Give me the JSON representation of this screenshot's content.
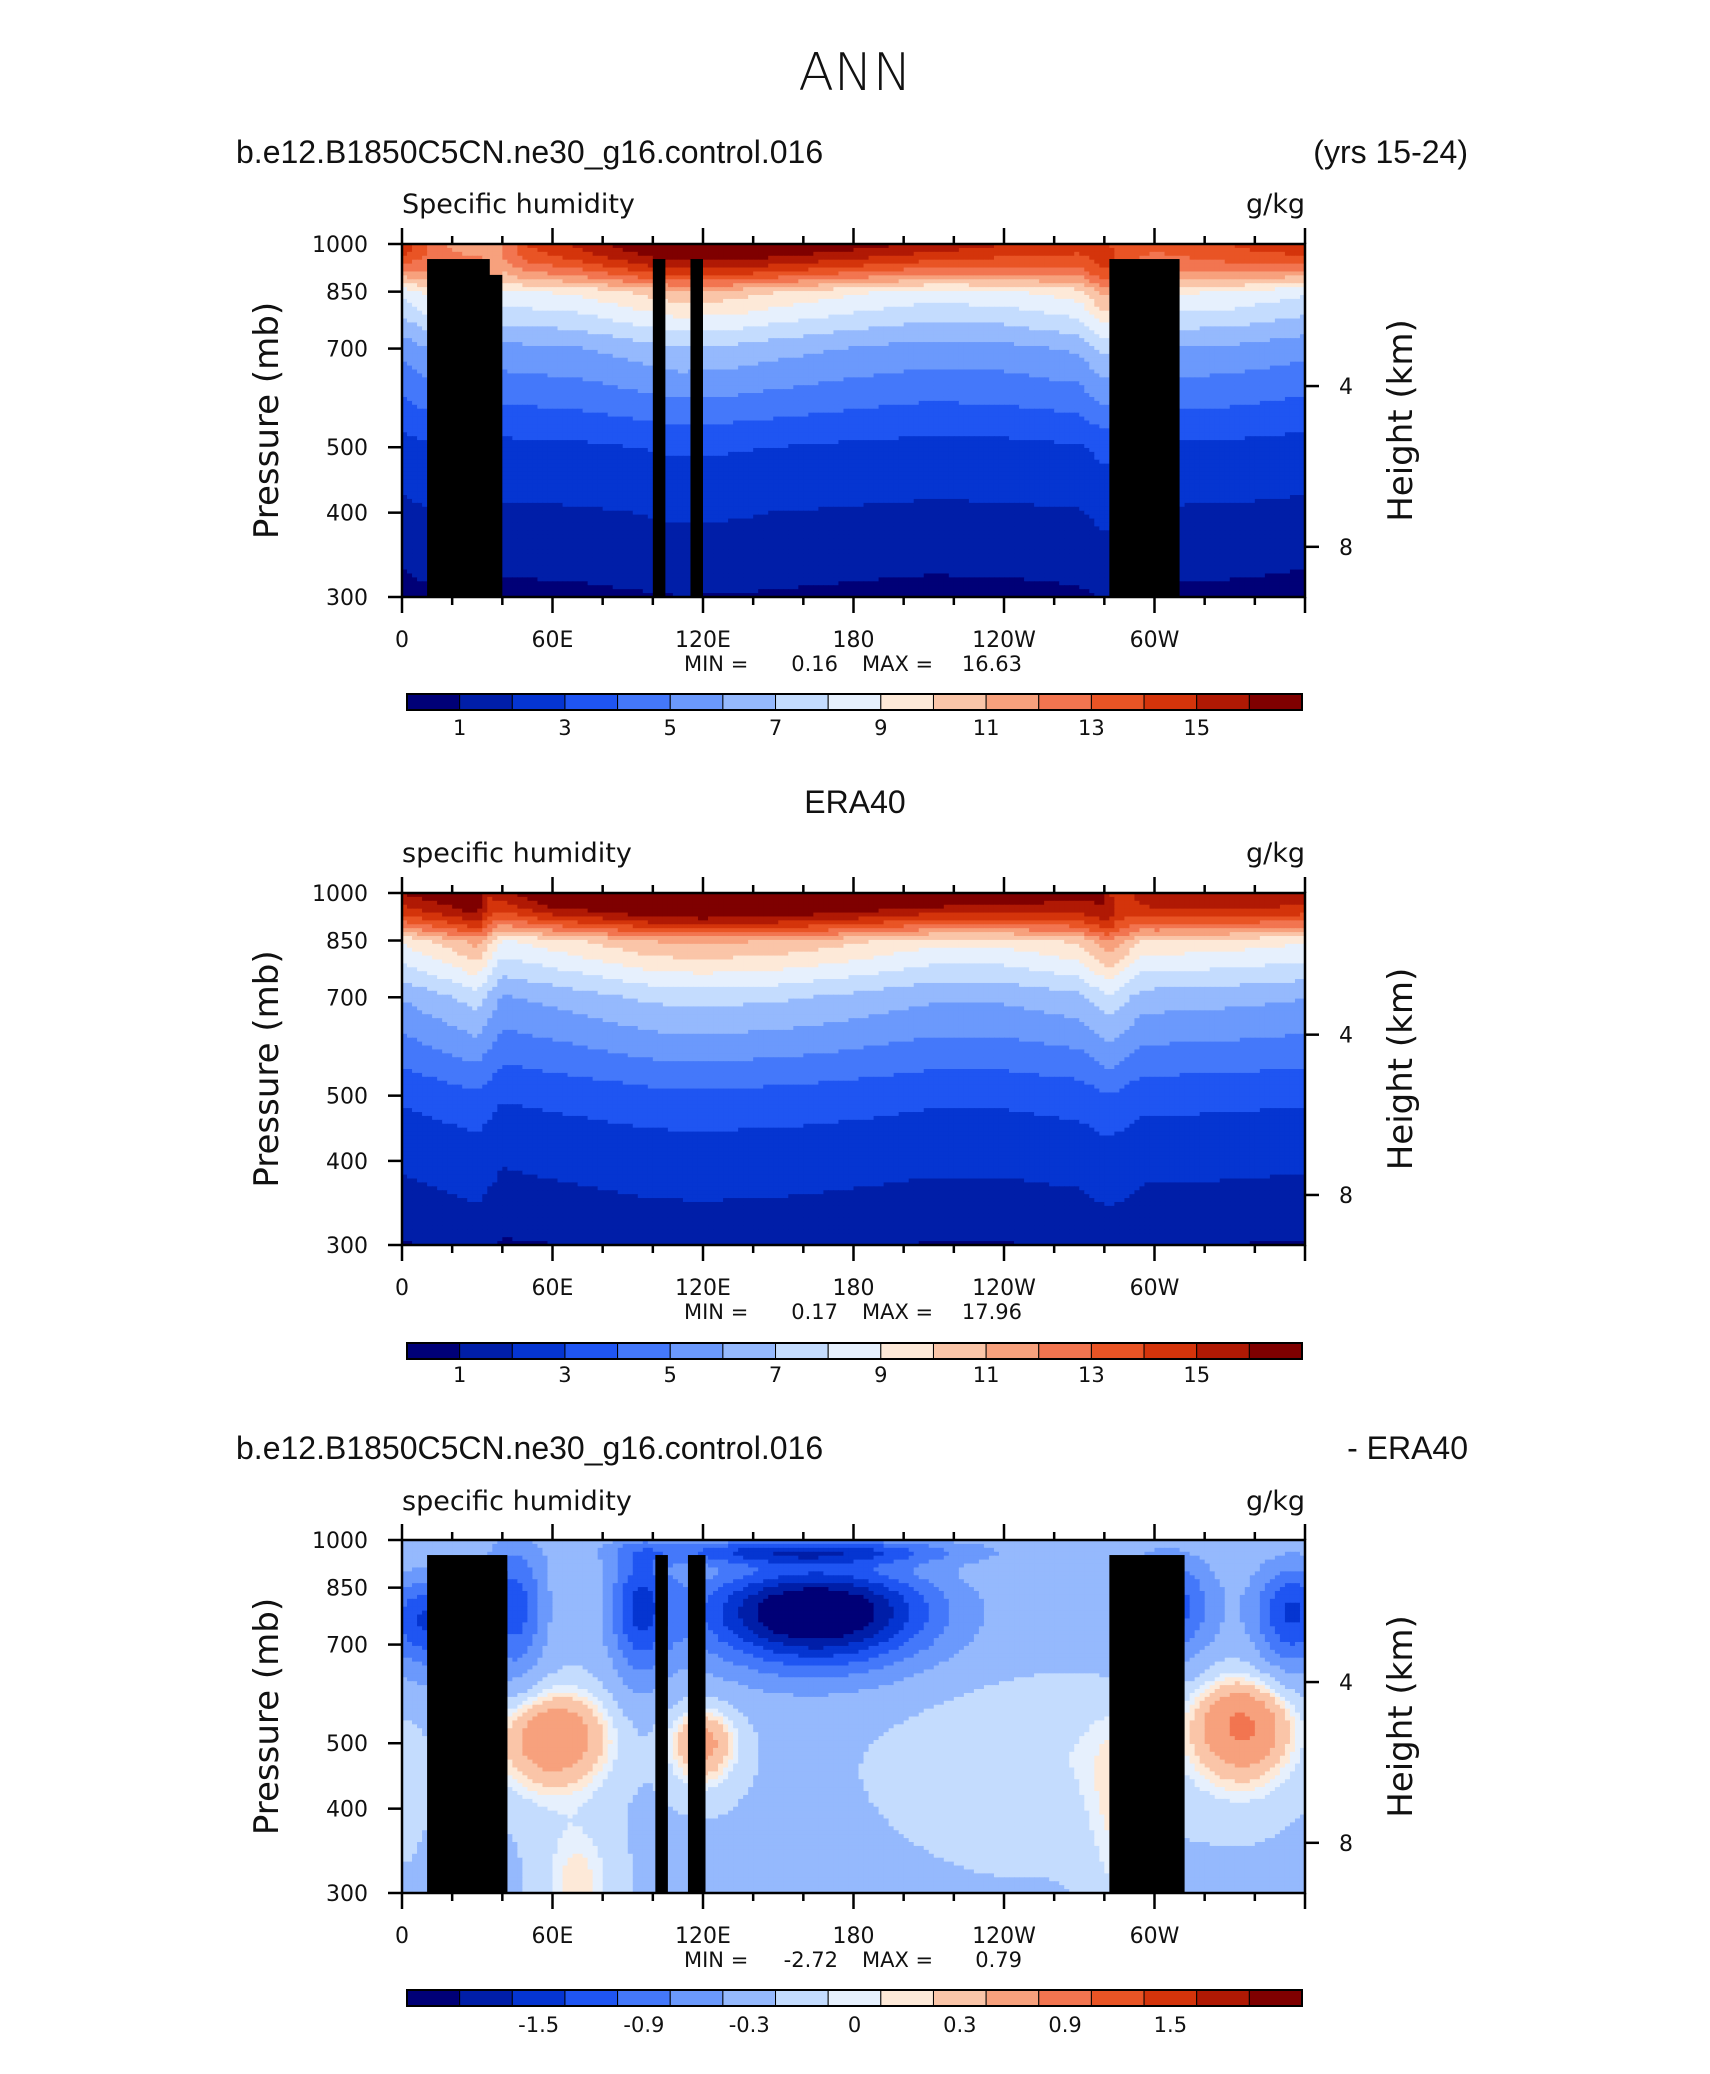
{
  "page_title": "ANN",
  "scale_colors": [
    "#000077",
    "#001ea8",
    "#0535d1",
    "#1f55f2",
    "#4478fa",
    "#6b99fc",
    "#95b9fd",
    "#c4dcfe",
    "#e6f0fd",
    "#fde9d8",
    "#fac5a8",
    "#f7a17d",
    "#f27550",
    "#e95425",
    "#d4340b",
    "#b01904",
    "#7f0000"
  ],
  "diff_colors": [
    "#000077",
    "#001ea8",
    "#0535d1",
    "#1f55f2",
    "#4478fa",
    "#6b99fc",
    "#95b9fd",
    "#c4dcfe",
    "#e6f0fd",
    "#fde9d8",
    "#fac5a8",
    "#f7a17d",
    "#f27550",
    "#e95425",
    "#d4340b",
    "#b01904",
    "#7f0000"
  ],
  "chart_data": [
    {
      "type": "heatmap",
      "id": "model",
      "header_left": "b.e12.B1850C5CN.ne30_g16.control.016",
      "header_right": "(yrs 15-24)",
      "title": "Specific humidity",
      "units": "g/kg",
      "ylabel": "Pressure (mb)",
      "ylabel_right": "Height (km)",
      "y_ticks": [
        "300",
        "400",
        "500",
        "700",
        "850",
        "1000"
      ],
      "y_right_ticks": [
        "8",
        "4"
      ],
      "x_ticks": [
        "0",
        "60E",
        "120E",
        "180",
        "120W",
        "60W"
      ],
      "ylim": [
        1000,
        300
      ],
      "xlim": [
        0,
        360
      ],
      "min_label": "MIN =",
      "min_value": "0.16",
      "max_label": "MAX =",
      "max_value": "16.63",
      "colorbar_labels": [
        "1",
        "3",
        "5",
        "7",
        "9",
        "11",
        "13",
        "15"
      ],
      "levels": [
        0.5,
        1,
        2,
        3,
        4,
        5,
        6,
        7,
        8,
        9,
        10,
        11,
        12,
        13,
        14,
        15
      ],
      "profile_pressures": [
        1000,
        850,
        700,
        500,
        400,
        300
      ],
      "profile_values": [
        15.0,
        10.0,
        6.0,
        2.2,
        1.1,
        0.5
      ],
      "profile_scale_by_longitude": [
        [
          0,
          0.72
        ],
        [
          20,
          0.95
        ],
        [
          30,
          1.05
        ],
        [
          40,
          0.78
        ],
        [
          70,
          0.82
        ],
        [
          100,
          0.94
        ],
        [
          110,
          0.98
        ],
        [
          130,
          0.96
        ],
        [
          150,
          0.9
        ],
        [
          180,
          0.82
        ],
        [
          210,
          0.76
        ],
        [
          240,
          0.78
        ],
        [
          270,
          0.86
        ],
        [
          280,
          1.05
        ],
        [
          290,
          0.85
        ],
        [
          300,
          0.82
        ],
        [
          330,
          0.8
        ],
        [
          360,
          0.72
        ]
      ],
      "surface_values": [
        [
          0,
          14
        ],
        [
          10,
          12
        ],
        [
          25,
          10
        ],
        [
          35,
          10
        ],
        [
          50,
          13
        ],
        [
          100,
          16
        ],
        [
          130,
          16.5
        ],
        [
          180,
          15.5
        ],
        [
          240,
          14
        ],
        [
          280,
          13
        ],
        [
          300,
          12
        ],
        [
          330,
          13
        ],
        [
          360,
          14
        ]
      ],
      "topography": [
        [
          10,
          35,
          950
        ],
        [
          28,
          40,
          900
        ],
        [
          100,
          105,
          950
        ],
        [
          115,
          120,
          950
        ],
        [
          282,
          310,
          950
        ]
      ]
    },
    {
      "type": "heatmap",
      "id": "obs",
      "header_center": "ERA40",
      "title": "specific humidity",
      "units": "g/kg",
      "ylabel": "Pressure (mb)",
      "ylabel_right": "Height (km)",
      "y_ticks": [
        "300",
        "400",
        "500",
        "700",
        "850",
        "1000"
      ],
      "y_right_ticks": [
        "8",
        "4"
      ],
      "x_ticks": [
        "0",
        "60E",
        "120E",
        "180",
        "120W",
        "60W"
      ],
      "ylim": [
        1000,
        300
      ],
      "xlim": [
        0,
        360
      ],
      "min_label": "MIN =",
      "min_value": "0.17",
      "max_label": "MAX =",
      "max_value": "17.96",
      "colorbar_labels": [
        "1",
        "3",
        "5",
        "7",
        "9",
        "11",
        "13",
        "15"
      ],
      "levels": [
        0.5,
        1,
        2,
        3,
        4,
        5,
        6,
        7,
        8,
        9,
        10,
        11,
        12,
        13,
        14,
        15
      ],
      "profile_pressures": [
        1000,
        850,
        700,
        500,
        400,
        300
      ],
      "profile_values": [
        16.5,
        10.5,
        6.5,
        2.8,
        1.4,
        0.6
      ],
      "profile_scale_by_longitude": [
        [
          0,
          0.78
        ],
        [
          20,
          0.92
        ],
        [
          30,
          1.0
        ],
        [
          40,
          0.75
        ],
        [
          70,
          0.85
        ],
        [
          100,
          0.96
        ],
        [
          120,
          0.98
        ],
        [
          150,
          0.95
        ],
        [
          180,
          0.88
        ],
        [
          210,
          0.8
        ],
        [
          240,
          0.8
        ],
        [
          270,
          0.88
        ],
        [
          282,
          1.05
        ],
        [
          295,
          0.85
        ],
        [
          330,
          0.82
        ],
        [
          360,
          0.78
        ]
      ],
      "surface_values": [
        [
          0,
          15
        ],
        [
          30,
          16
        ],
        [
          35,
          14
        ],
        [
          60,
          16.5
        ],
        [
          120,
          17.5
        ],
        [
          180,
          17
        ],
        [
          240,
          16
        ],
        [
          280,
          15
        ],
        [
          285,
          13
        ],
        [
          300,
          15
        ],
        [
          360,
          15
        ]
      ],
      "topography": []
    },
    {
      "type": "heatmap",
      "id": "diff",
      "header_left": "b.e12.B1850C5CN.ne30_g16.control.016",
      "header_right": "- ERA40",
      "title": "specific humidity",
      "units": "g/kg",
      "ylabel": "Pressure (mb)",
      "ylabel_right": "Height (km)",
      "y_ticks": [
        "300",
        "400",
        "500",
        "700",
        "850",
        "1000"
      ],
      "y_right_ticks": [
        "8",
        "4"
      ],
      "x_ticks": [
        "0",
        "60E",
        "120E",
        "180",
        "120W",
        "60W"
      ],
      "ylim": [
        1000,
        300
      ],
      "xlim": [
        0,
        360
      ],
      "min_label": "MIN =",
      "min_value": "-2.72",
      "max_label": "MAX =",
      "max_value": "0.79",
      "colorbar_labels": [
        "-1.5",
        "-0.9",
        "-0.3",
        "0",
        "0.3",
        "0.9",
        "1.5"
      ],
      "levels": [
        -2.1,
        -1.8,
        -1.5,
        -1.2,
        -0.9,
        -0.6,
        -0.3,
        -0.1,
        0,
        0.1,
        0.3,
        0.6,
        0.9,
        1.2,
        1.5,
        1.8
      ],
      "base_value": -0.35,
      "anomalies": [
        {
          "lon": 165,
          "p": 780,
          "dlon": 45,
          "dp": 130,
          "amp": -2.3
        },
        {
          "lon": 160,
          "p": 960,
          "dlon": 60,
          "dp": 40,
          "amp": -1.2
        },
        {
          "lon": 10,
          "p": 760,
          "dlon": 18,
          "dp": 120,
          "amp": -1.2
        },
        {
          "lon": 45,
          "p": 800,
          "dlon": 12,
          "dp": 180,
          "amp": -1.0
        },
        {
          "lon": 95,
          "p": 800,
          "dlon": 12,
          "dp": 180,
          "amp": -1.1
        },
        {
          "lon": 305,
          "p": 800,
          "dlon": 18,
          "dp": 140,
          "amp": -1.1
        },
        {
          "lon": 355,
          "p": 780,
          "dlon": 15,
          "dp": 140,
          "amp": -1.2
        },
        {
          "lon": 60,
          "p": 510,
          "dlon": 24,
          "dp": 90,
          "amp": 0.95
        },
        {
          "lon": 120,
          "p": 500,
          "dlon": 14,
          "dp": 70,
          "amp": 0.75
        },
        {
          "lon": 335,
          "p": 530,
          "dlon": 22,
          "dp": 100,
          "amp": 1.0
        },
        {
          "lon": 70,
          "p": 310,
          "dlon": 15,
          "dp": 70,
          "amp": 0.4
        },
        {
          "lon": 250,
          "p": 480,
          "dlon": 55,
          "dp": 130,
          "amp": 0.25
        },
        {
          "lon": 285,
          "p": 400,
          "dlon": 12,
          "dp": 160,
          "amp": 0.3
        },
        {
          "lon": 0,
          "p": 450,
          "dlon": 10,
          "dp": 100,
          "amp": 0.2
        }
      ],
      "topography": [
        [
          10,
          42,
          950
        ],
        [
          28,
          42,
          900
        ],
        [
          101,
          106,
          950
        ],
        [
          114,
          121,
          950
        ],
        [
          282,
          312,
          950
        ]
      ]
    }
  ]
}
